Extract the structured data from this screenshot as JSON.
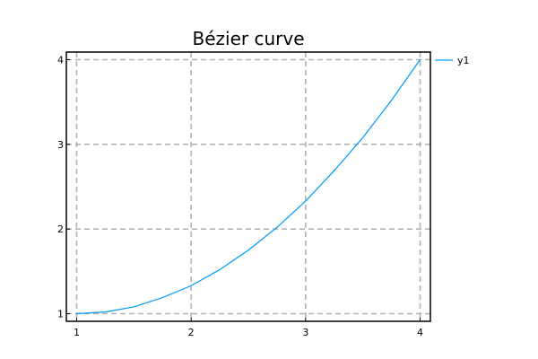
{
  "chart_data": {
    "type": "line",
    "title": "Bézier curve",
    "xlabel": "",
    "ylabel": "",
    "xlim": [
      0.91,
      4.09
    ],
    "ylim": [
      0.91,
      4.09
    ],
    "xticks": [
      1,
      2,
      3,
      4
    ],
    "yticks": [
      1,
      2,
      3,
      4
    ],
    "xtick_labels": [
      "1",
      "2",
      "3",
      "4"
    ],
    "ytick_labels": [
      "1",
      "2",
      "3",
      "4"
    ],
    "grid": true,
    "legend_position": "outside-top-right",
    "series": [
      {
        "name": "y1",
        "color": "#009af9",
        "x": [
          1.0,
          1.25,
          1.5,
          1.75,
          2.0,
          2.25,
          2.5,
          2.75,
          3.0,
          3.25,
          3.5,
          3.75,
          4.0
        ],
        "y": [
          1.0,
          1.02,
          1.08,
          1.19,
          1.33,
          1.52,
          1.75,
          2.02,
          2.33,
          2.69,
          3.08,
          3.52,
          4.0
        ]
      }
    ]
  }
}
